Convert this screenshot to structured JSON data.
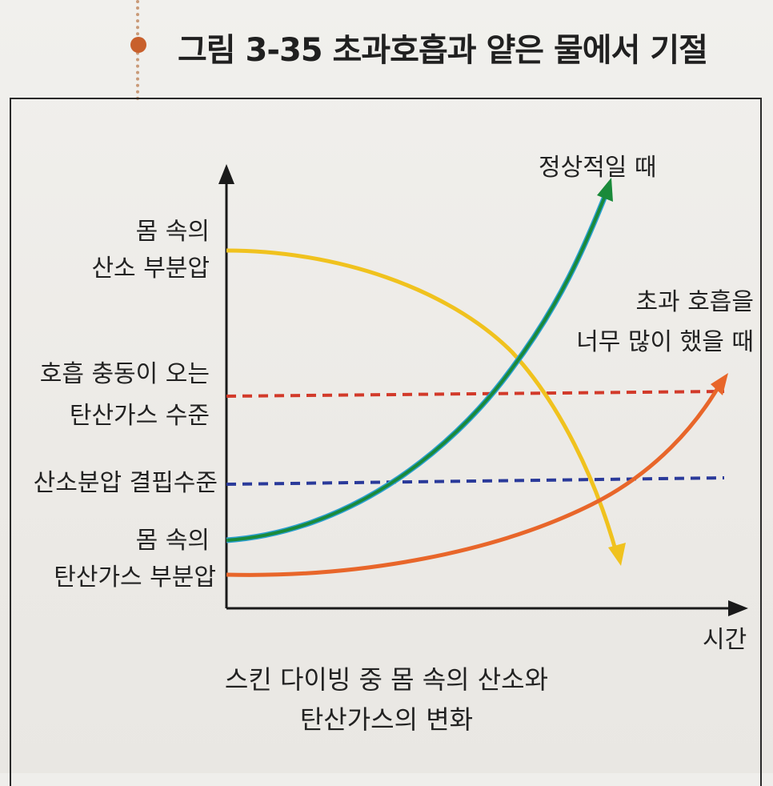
{
  "figure": {
    "title": "그림 3-35 초과호흡과 얕은 물에서 기절"
  },
  "labels": {
    "o2_line1": "몸 속의",
    "o2_line2": "산소 부분압",
    "breath_line1": "호흡 충동이 오는",
    "breath_line2": "탄산가스 수준",
    "hypoxia_line1": "산소분압 결핍수준",
    "co2_line1": "몸 속의",
    "co2_line2": "탄산가스 부분압",
    "normal": "정상적일 때",
    "hyper_line1": "초과 호흡을",
    "hyper_line2": "너무 많이 했을 때",
    "x_axis": "시간"
  },
  "caption": {
    "line1": "스킨 다이빙 중 몸 속의 산소와",
    "line2": "탄산가스의 변화"
  },
  "colors": {
    "o2_curve": "#f0c21e",
    "co2_normal": "#1a8a3a",
    "co2_normal_edge": "#2a9fd0",
    "co2_hyper": "#e8662a",
    "breath_threshold": "#d23a2a",
    "hypoxia_threshold": "#2a3a9a",
    "axis": "#1a1a1a",
    "bullet": "#c8602c"
  }
}
